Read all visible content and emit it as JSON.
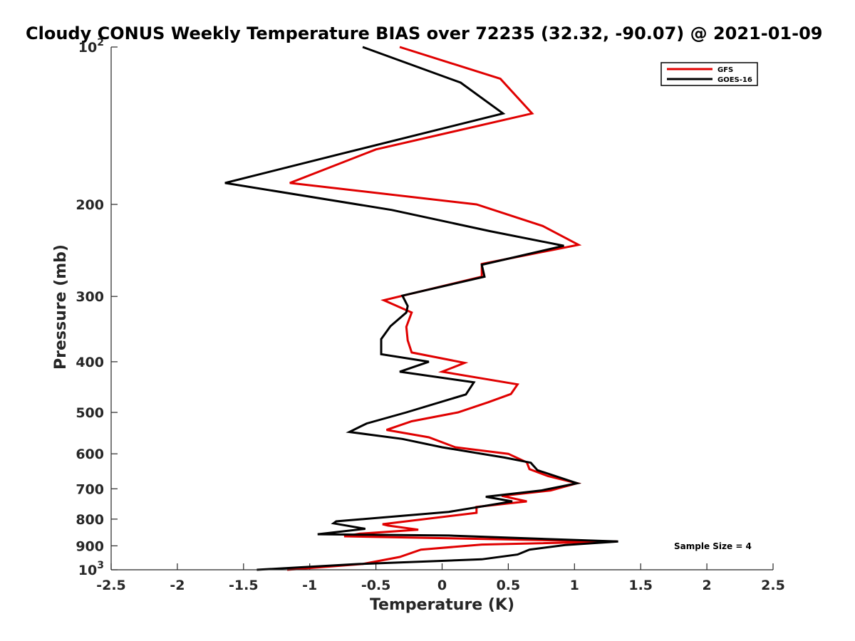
{
  "chart_data": {
    "type": "line",
    "title": "Cloudy CONUS Weekly Temperature BIAS over 72235 (32.32, -90.07) @ 2021-01-09",
    "xlabel": "Temperature (K)",
    "ylabel": "Pressure (mb)",
    "xlim": [
      -2.5,
      2.5
    ],
    "ylim": [
      100,
      1000
    ],
    "y_scale": "log",
    "y_reversed": true,
    "x_ticks": [
      "-2.5",
      "-2",
      "-1.5",
      "-1",
      "-0.5",
      "0",
      "0.5",
      "1",
      "1.5",
      "2",
      "2.5"
    ],
    "y_ticks": [
      {
        "value": 100,
        "base": "10",
        "exp": "2"
      },
      {
        "value": 200,
        "label": "200"
      },
      {
        "value": 300,
        "label": "300"
      },
      {
        "value": 400,
        "label": "400"
      },
      {
        "value": 500,
        "label": "500"
      },
      {
        "value": 600,
        "label": "600"
      },
      {
        "value": 700,
        "label": "700"
      },
      {
        "value": 800,
        "label": "800"
      },
      {
        "value": 900,
        "label": "900"
      },
      {
        "value": 1000,
        "base": "10",
        "exp": "3"
      }
    ],
    "legend_position": "top-right",
    "annotation": "Sample Size = 4",
    "series": [
      {
        "name": "GFS",
        "color": "#e00000",
        "points": [
          [
            -0.32,
            100
          ],
          [
            0.44,
            115
          ],
          [
            0.68,
            134
          ],
          [
            -0.5,
            157
          ],
          [
            -1.15,
            182
          ],
          [
            0.26,
            200
          ],
          [
            0.76,
            220
          ],
          [
            1.03,
            239
          ],
          [
            0.3,
            260
          ],
          [
            0.3,
            275
          ],
          [
            -0.44,
            305
          ],
          [
            -0.23,
            322
          ],
          [
            -0.27,
            343
          ],
          [
            -0.26,
            364
          ],
          [
            -0.23,
            384
          ],
          [
            0.17,
            402
          ],
          [
            0.0,
            418
          ],
          [
            0.57,
            442
          ],
          [
            0.52,
            461
          ],
          [
            0.35,
            478
          ],
          [
            0.12,
            500
          ],
          [
            -0.23,
            520
          ],
          [
            -0.42,
            540
          ],
          [
            -0.1,
            558
          ],
          [
            0.1,
            583
          ],
          [
            0.5,
            600
          ],
          [
            0.64,
            623
          ],
          [
            0.66,
            642
          ],
          [
            0.8,
            662
          ],
          [
            1.02,
            683
          ],
          [
            0.82,
            705
          ],
          [
            0.45,
            722
          ],
          [
            0.64,
            740
          ],
          [
            0.26,
            758
          ],
          [
            0.26,
            778
          ],
          [
            -0.45,
            818
          ],
          [
            -0.41,
            823
          ],
          [
            -0.18,
            838
          ],
          [
            -0.62,
            853
          ],
          [
            -0.74,
            863
          ],
          [
            1.32,
            883
          ],
          [
            0.3,
            895
          ],
          [
            -0.16,
            915
          ],
          [
            -0.32,
            945
          ],
          [
            -0.6,
            975
          ],
          [
            -1.17,
            1000
          ]
        ]
      },
      {
        "name": "GOES-16",
        "color": "#000000",
        "points": [
          [
            -0.6,
            100
          ],
          [
            0.14,
            117
          ],
          [
            0.46,
            134
          ],
          [
            -0.76,
            160
          ],
          [
            -1.64,
            182
          ],
          [
            -0.38,
            205
          ],
          [
            0.36,
            225
          ],
          [
            0.92,
            240
          ],
          [
            0.3,
            261
          ],
          [
            0.32,
            275
          ],
          [
            -0.3,
            299
          ],
          [
            -0.26,
            313
          ],
          [
            -0.27,
            322
          ],
          [
            -0.39,
            342
          ],
          [
            -0.46,
            362
          ],
          [
            -0.46,
            387
          ],
          [
            -0.1,
            400
          ],
          [
            -0.32,
            418
          ],
          [
            0.24,
            438
          ],
          [
            0.18,
            462
          ],
          [
            -0.27,
            500
          ],
          [
            -0.57,
            525
          ],
          [
            -0.7,
            545
          ],
          [
            -0.3,
            562
          ],
          [
            0.0,
            583
          ],
          [
            0.47,
            610
          ],
          [
            0.67,
            624
          ],
          [
            0.72,
            645
          ],
          [
            1.02,
            683
          ],
          [
            0.75,
            705
          ],
          [
            0.33,
            725
          ],
          [
            0.53,
            740
          ],
          [
            0.05,
            775
          ],
          [
            -0.8,
            808
          ],
          [
            -0.82,
            815
          ],
          [
            -0.58,
            835
          ],
          [
            -0.94,
            855
          ],
          [
            0.05,
            860
          ],
          [
            1.33,
            883
          ],
          [
            0.93,
            897
          ],
          [
            0.66,
            915
          ],
          [
            0.57,
            935
          ],
          [
            0.3,
            955
          ],
          [
            -0.63,
            975
          ],
          [
            -1.4,
            1000
          ]
        ]
      }
    ]
  }
}
